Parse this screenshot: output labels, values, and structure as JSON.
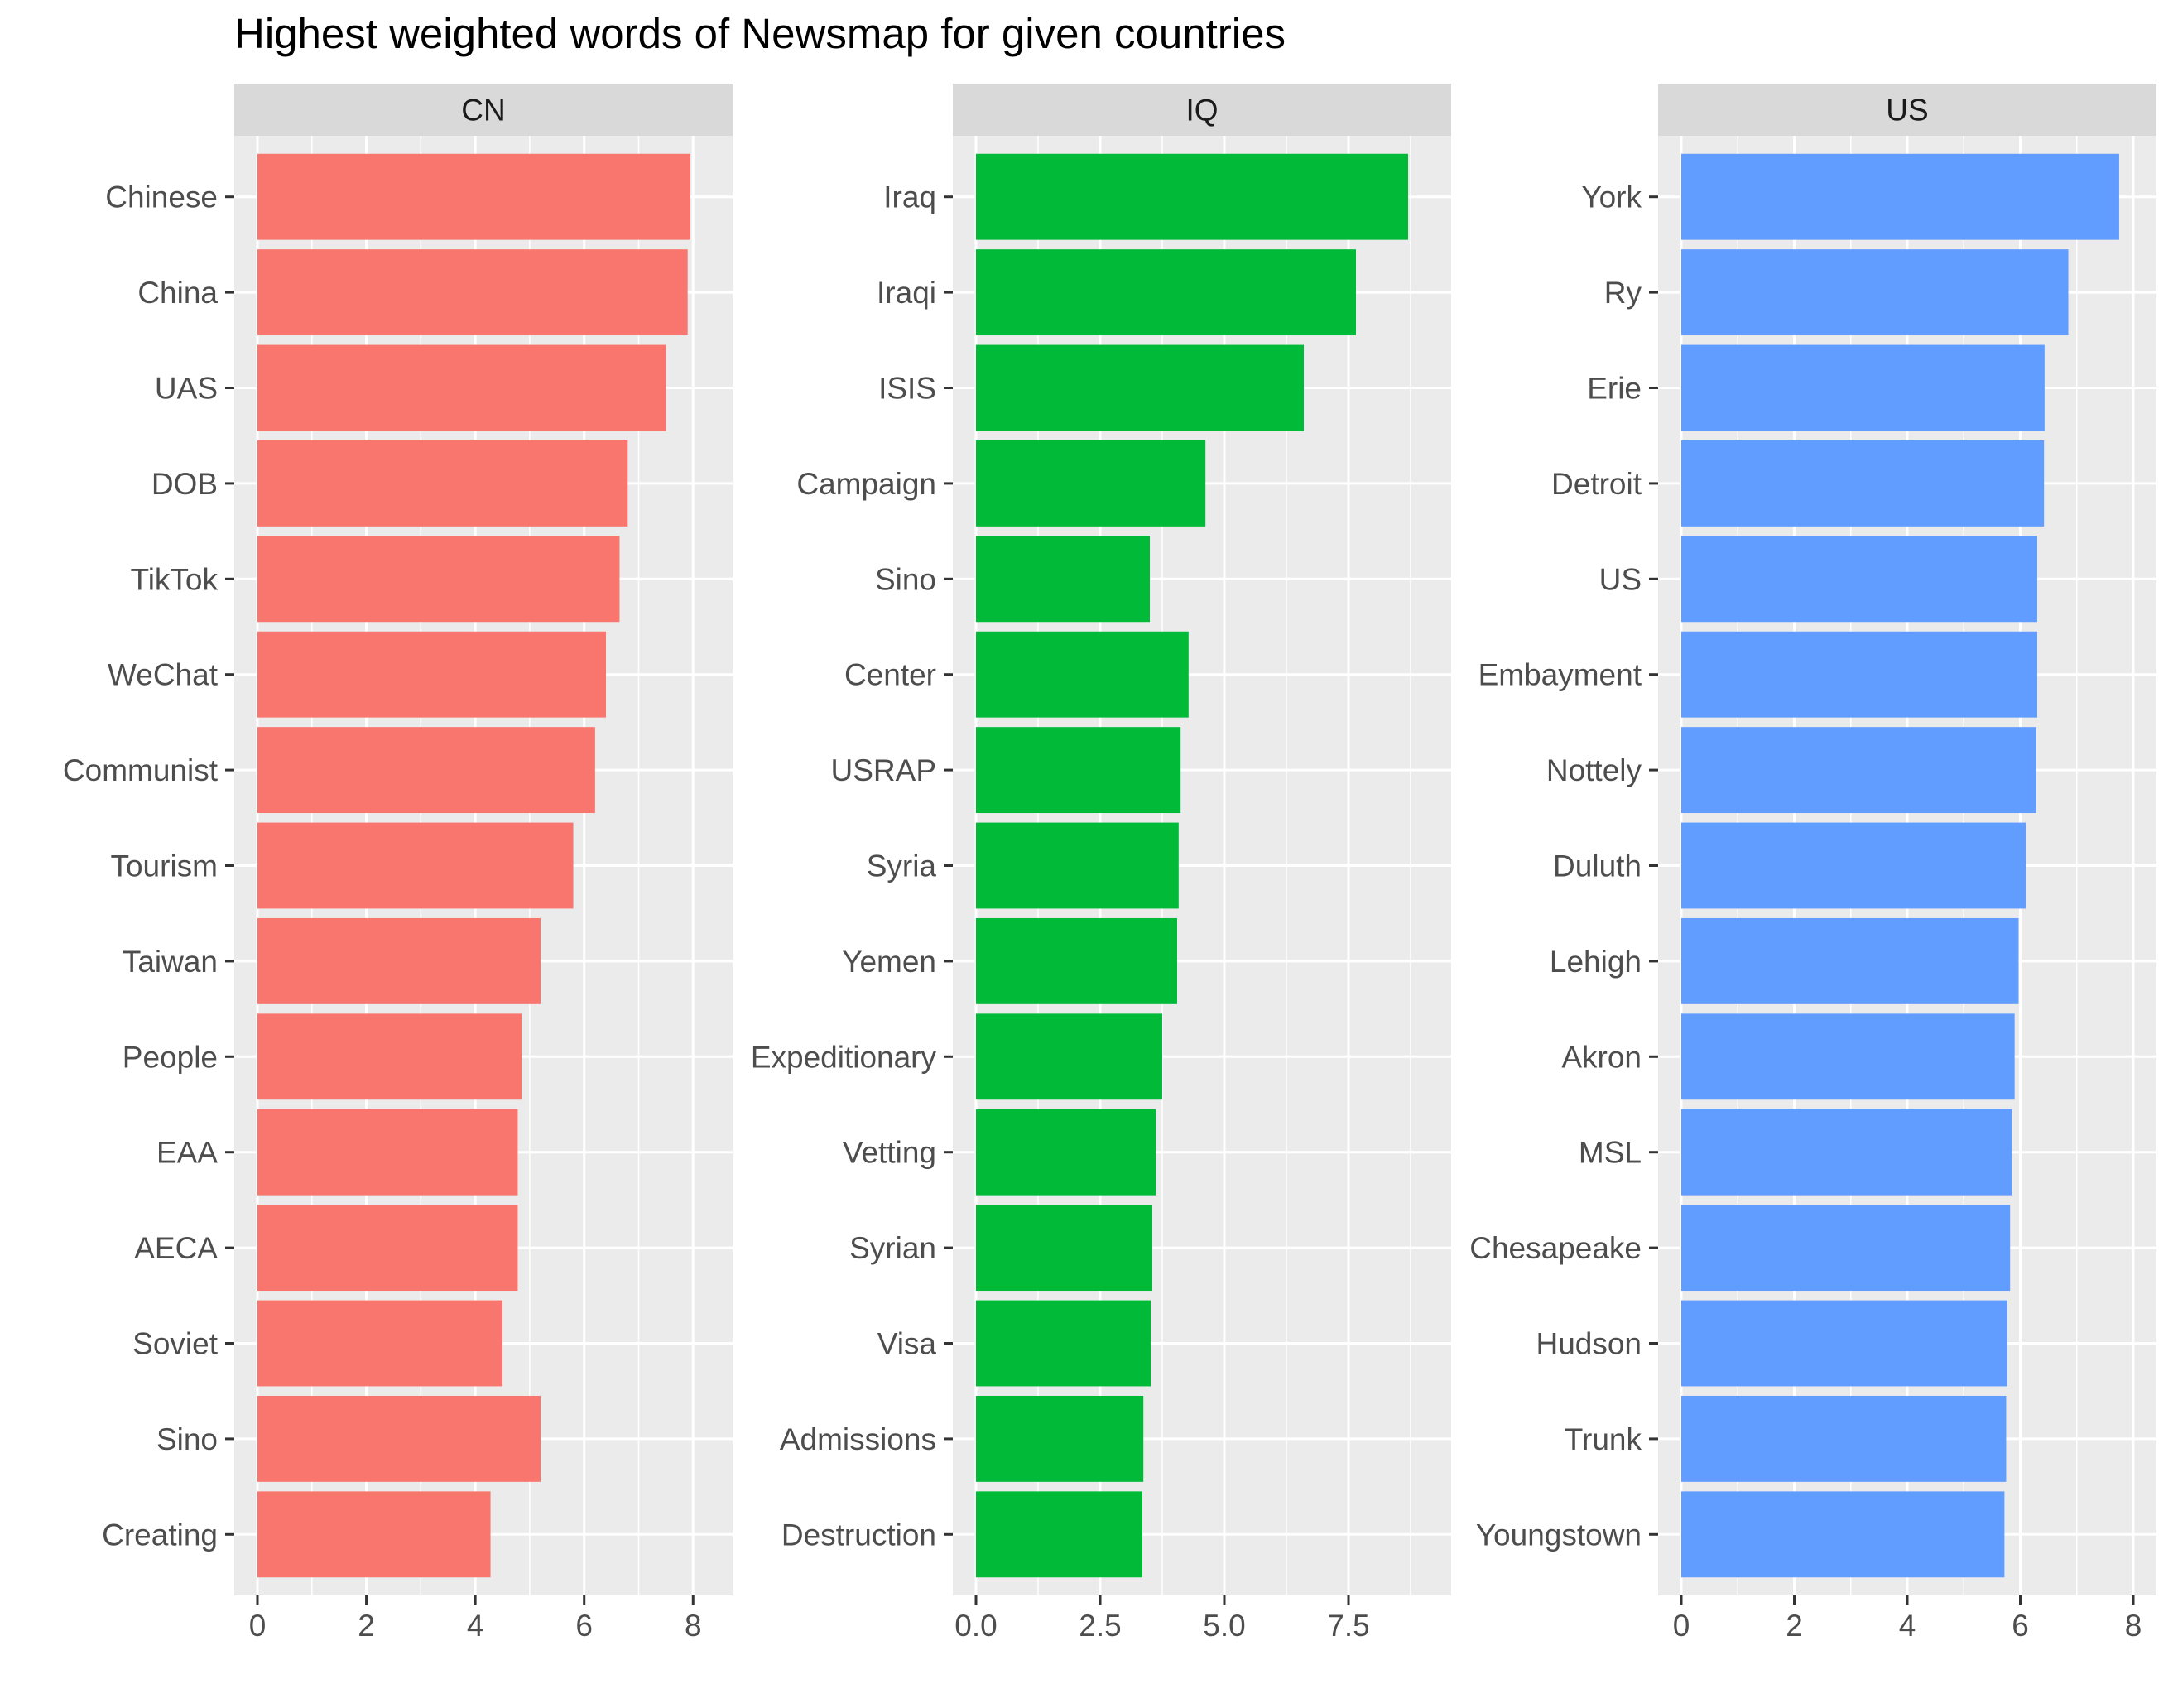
{
  "chart_data": {
    "type": "bar",
    "orientation": "horizontal",
    "title": "Highest weighted words of Newsmap for given countries",
    "xlabel": "",
    "ylabel": "",
    "grid": true,
    "legend": "none",
    "panels": [
      {
        "strip": "CN",
        "color": "#F8766D",
        "xlim": [
          0,
          8.3
        ],
        "x_ticks": [
          0,
          2,
          4,
          6,
          8
        ],
        "x_tick_labels": [
          "0",
          "2",
          "4",
          "6",
          "8"
        ],
        "categories": [
          "Chinese",
          "China",
          "UAS",
          "DOB",
          "TikTok",
          "WeChat",
          "Communist",
          "Tourism",
          "Taiwan",
          "People",
          "EAA",
          "AECA",
          "Soviet",
          "Sino",
          "Creating"
        ],
        "values": [
          7.95,
          7.9,
          7.5,
          6.8,
          6.65,
          6.4,
          6.2,
          5.8,
          5.2,
          4.85,
          4.78,
          4.78,
          4.5,
          5.2,
          4.28
        ]
      },
      {
        "strip": "IQ",
        "color": "#00BA38",
        "xlim": [
          0,
          9.1
        ],
        "x_ticks": [
          0,
          2.5,
          5,
          7.5
        ],
        "x_tick_labels": [
          "0.0",
          "2.5",
          "5.0",
          "7.5"
        ],
        "categories": [
          "Iraq",
          "Iraqi",
          "ISIS",
          "Campaign",
          "Sino",
          "Center",
          "USRAP",
          "Syria",
          "Yemen",
          "Expeditionary",
          "Vetting",
          "Syrian",
          "Visa",
          "Admissions",
          "Destruction"
        ],
        "values": [
          8.7,
          7.65,
          6.6,
          4.62,
          3.5,
          4.28,
          4.12,
          4.08,
          4.05,
          3.75,
          3.62,
          3.55,
          3.52,
          3.37,
          3.35
        ]
      },
      {
        "strip": "US",
        "color": "#619CFF",
        "xlim": [
          0,
          8.0
        ],
        "x_ticks": [
          0,
          2,
          4,
          6,
          8
        ],
        "x_tick_labels": [
          "0",
          "2",
          "4",
          "6",
          "8"
        ],
        "categories": [
          "York",
          "Ry",
          "Erie",
          "Detroit",
          "US",
          "Embayment",
          "Nottely",
          "Duluth",
          "Lehigh",
          "Akron",
          "MSL",
          "Chesapeake",
          "Hudson",
          "Trunk",
          "Youngstown"
        ],
        "values": [
          7.75,
          6.85,
          6.43,
          6.42,
          6.3,
          6.3,
          6.28,
          6.1,
          5.97,
          5.9,
          5.85,
          5.82,
          5.77,
          5.75,
          5.72
        ]
      }
    ]
  }
}
